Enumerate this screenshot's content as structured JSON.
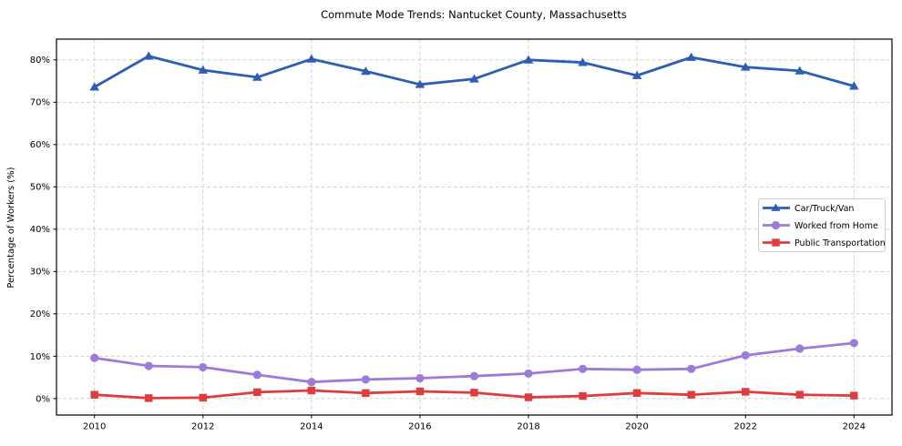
{
  "chart_data": {
    "type": "line",
    "title": "Commute Mode Trends: Nantucket County, Massachusetts",
    "ylabel": "Percentage of Workers (%)",
    "xlabel": "",
    "x": [
      2010,
      2011,
      2012,
      2013,
      2014,
      2015,
      2016,
      2017,
      2018,
      2019,
      2020,
      2021,
      2022,
      2023,
      2024
    ],
    "series": [
      {
        "name": "Car/Truck/Van",
        "marker": "triangle",
        "color": "#2c5eb6",
        "values": [
          73.6,
          80.9,
          77.6,
          75.9,
          80.2,
          77.3,
          74.2,
          75.5,
          80.0,
          79.4,
          76.3,
          80.6,
          78.3,
          77.4,
          73.8
        ]
      },
      {
        "name": "Worked from Home",
        "marker": "circle",
        "color": "#9c7bda",
        "values": [
          9.6,
          7.7,
          7.4,
          5.6,
          3.9,
          4.5,
          4.8,
          5.3,
          5.9,
          7.0,
          6.8,
          7.0,
          10.2,
          11.8,
          13.1
        ]
      },
      {
        "name": "Public Transportation",
        "marker": "square",
        "color": "#e23b3b",
        "values": [
          0.9,
          0.1,
          0.2,
          1.5,
          1.9,
          1.3,
          1.7,
          1.4,
          0.3,
          0.6,
          1.3,
          0.9,
          1.6,
          0.9,
          0.7
        ]
      }
    ],
    "xlim": [
      2009.3,
      2024.7
    ],
    "ylim": [
      -3.9,
      84.9
    ],
    "xticks": [
      2010,
      2012,
      2014,
      2016,
      2018,
      2020,
      2022,
      2024
    ],
    "xtick_labels": [
      "2010",
      "2012",
      "2014",
      "2016",
      "2018",
      "2020",
      "2022",
      "2024"
    ],
    "yticks": [
      0,
      10,
      20,
      30,
      40,
      50,
      60,
      70,
      80
    ],
    "ytick_labels": [
      "0%",
      "10%",
      "20%",
      "30%",
      "40%",
      "50%",
      "60%",
      "70%",
      "80%"
    ],
    "grid": true,
    "legend_position": "center right",
    "colors": {
      "grid": "#cccccc",
      "spine": "#000000",
      "background": "#ffffff",
      "legend_border": "#cccccc"
    }
  }
}
